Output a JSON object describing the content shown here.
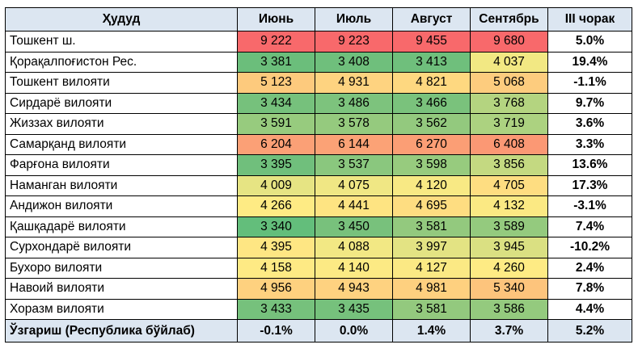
{
  "table": {
    "headers": [
      "Ҳудуд",
      "Июнь",
      "Июль",
      "Август",
      "Сентябрь",
      "III чорак"
    ],
    "rows": [
      {
        "region": "Тошкент ш.",
        "values": [
          "9 222",
          "9 223",
          "9 455",
          "9 680"
        ],
        "change": "5.0%",
        "colors": [
          "#f8696b",
          "#f8696b",
          "#f8696b",
          "#f8696b"
        ]
      },
      {
        "region": "Қорақалпоғистон Рес.",
        "values": [
          "3 381",
          "3 408",
          "3 413",
          "4 037"
        ],
        "change": "19.4%",
        "colors": [
          "#6bbe7b",
          "#6fbf7c",
          "#6fbf7c",
          "#f2e883"
        ]
      },
      {
        "region": "Тошкент вилояти",
        "values": [
          "5 123",
          "4 931",
          "4 821",
          "5 068"
        ],
        "change": "-1.1%",
        "colors": [
          "#fdca7d",
          "#fed380",
          "#fed880",
          "#fdcc7e"
        ]
      },
      {
        "region": "Сирдарё вилояти",
        "values": [
          "3 434",
          "3 486",
          "3 466",
          "3 768"
        ],
        "change": "9.7%",
        "colors": [
          "#76c17c",
          "#7dc37d",
          "#7ac27c",
          "#b4d480"
        ]
      },
      {
        "region": "Жиззах вилояти",
        "values": [
          "3 591",
          "3 578",
          "3 562",
          "3 719"
        ],
        "change": "3.6%",
        "colors": [
          "#97cb7e",
          "#95ca7e",
          "#93c97e",
          "#acd280"
        ]
      },
      {
        "region": "Самарқанд вилояти",
        "values": [
          "6 204",
          "6 144",
          "6 270",
          "6 408"
        ],
        "change": "3.3%",
        "colors": [
          "#fba076",
          "#fba276",
          "#fb9e75",
          "#fb9874"
        ]
      },
      {
        "region": "Фарғона вилояти",
        "values": [
          "3 395",
          "3 537",
          "3 598",
          "3 856"
        ],
        "change": "13.6%",
        "colors": [
          "#70bf7c",
          "#8ac77e",
          "#97cb7e",
          "#c4d981"
        ]
      },
      {
        "region": "Наманган вилояти",
        "values": [
          "4 009",
          "4 075",
          "4 120",
          "4 705"
        ],
        "change": "17.3%",
        "colors": [
          "#e6e483",
          "#f0e784",
          "#f8e984",
          "#fedd81"
        ]
      },
      {
        "region": "Андижон вилояти",
        "values": [
          "4 266",
          "4 441",
          "4 695",
          "4 132"
        ],
        "change": "-3.1%",
        "colors": [
          "#feeb84",
          "#fee482",
          "#fedd81",
          "#fbe983"
        ]
      },
      {
        "region": "Қашқадарё вилояти",
        "values": [
          "3 340",
          "3 450",
          "3 581",
          "3 589"
        ],
        "change": "7.4%",
        "colors": [
          "#63be7b",
          "#78c17c",
          "#93c97e",
          "#94ca7e"
        ]
      },
      {
        "region": "Сурхондарё вилояти",
        "values": [
          "4 395",
          "4 088",
          "3 997",
          "3 945"
        ],
        "change": "-10.2%",
        "colors": [
          "#fee683",
          "#f2e884",
          "#e3e383",
          "#dae082"
        ]
      },
      {
        "region": "Бухоро вилояти",
        "values": [
          "4 158",
          "4 140",
          "4 127",
          "4 260"
        ],
        "change": "2.4%",
        "colors": [
          "#feea84",
          "#fcea84",
          "#fbe984",
          "#feeb84"
        ]
      },
      {
        "region": "Навоий вилояти",
        "values": [
          "4 956",
          "4 943",
          "4 981",
          "5 340"
        ],
        "change": "7.8%",
        "colors": [
          "#fed17f",
          "#fed280",
          "#fed07f",
          "#fdc47c"
        ]
      },
      {
        "region": "Хоразм вилояти",
        "values": [
          "3 433",
          "3 435",
          "3 581",
          "3 586"
        ],
        "change": "4.4%",
        "colors": [
          "#76c17c",
          "#76c17c",
          "#93c97e",
          "#94ca7e"
        ]
      }
    ],
    "total": {
      "label": "Ўзгариш (Республика бўйлаб)",
      "values": [
        "-0.1%",
        "0.0%",
        "1.4%",
        "3.7%",
        "5.2%"
      ]
    }
  }
}
